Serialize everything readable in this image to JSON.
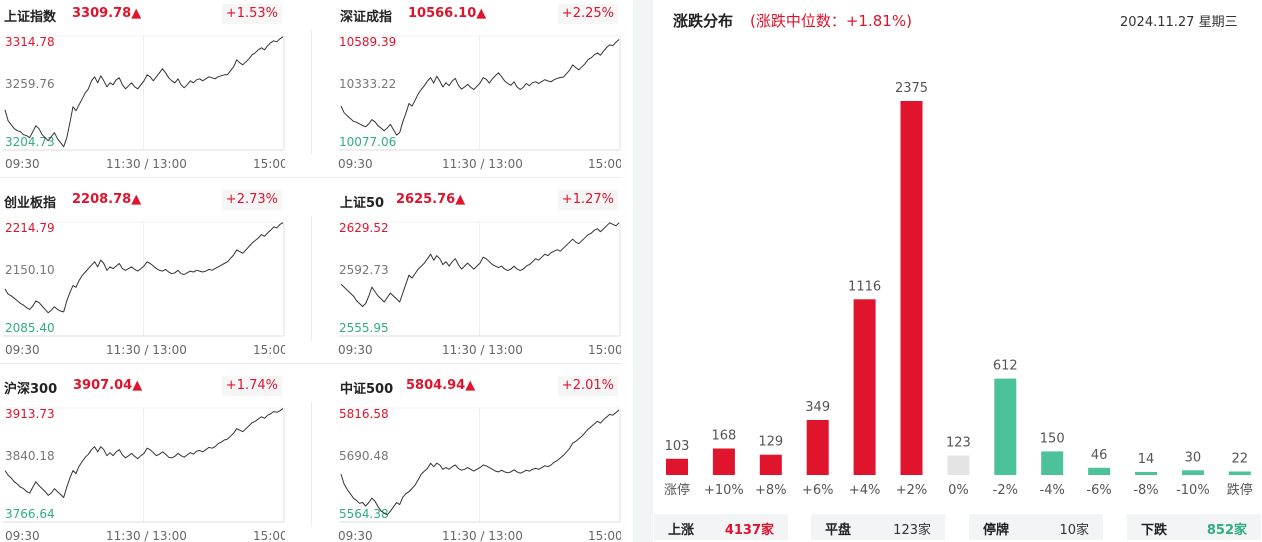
{
  "indices": [
    {
      "name": "上证指数",
      "price": "3309.78▲",
      "pct": "+1.53%",
      "high": "3314.78",
      "mid": "3259.76",
      "low": "3204.73",
      "times": [
        "09:30",
        "11:30 / 13:00",
        "15:00"
      ],
      "series": [
        3241,
        3230,
        3226,
        3222,
        3220,
        3219,
        3216,
        3215,
        3213,
        3219,
        3225,
        3222,
        3216,
        3213,
        3210,
        3214,
        3218,
        3212,
        3208,
        3204,
        3213,
        3228,
        3244,
        3240,
        3246,
        3252,
        3258,
        3262,
        3270,
        3274,
        3268,
        3275,
        3270,
        3264,
        3268,
        3266,
        3271,
        3273,
        3266,
        3262,
        3265,
        3268,
        3264,
        3262,
        3266,
        3270,
        3276,
        3274,
        3270,
        3274,
        3278,
        3282,
        3278,
        3273,
        3270,
        3268,
        3272,
        3266,
        3263,
        3266,
        3270,
        3268,
        3271,
        3272,
        3270,
        3272,
        3274,
        3273,
        3272,
        3274,
        3275,
        3276,
        3276,
        3280,
        3284,
        3291,
        3288,
        3286,
        3289,
        3292,
        3296,
        3298,
        3301,
        3303,
        3301,
        3305,
        3308,
        3310,
        3309,
        3312,
        3314
      ]
    },
    {
      "name": "深证成指",
      "price": "10566.10▲",
      "pct": "+2.25%",
      "high": "10589.39",
      "mid": "10333.22",
      "low": "10077.06",
      "times": [
        "09:30",
        "11:30 / 13:00",
        "15:00"
      ],
      "series": [
        10263,
        10232,
        10218,
        10205,
        10192,
        10188,
        10180,
        10172,
        10167,
        10180,
        10200,
        10190,
        10171,
        10160,
        10148,
        10162,
        10178,
        10153,
        10128,
        10140,
        10190,
        10230,
        10275,
        10263,
        10290,
        10320,
        10340,
        10358,
        10380,
        10395,
        10370,
        10402,
        10380,
        10352,
        10372,
        10358,
        10380,
        10392,
        10360,
        10342,
        10352,
        10364,
        10350,
        10340,
        10355,
        10370,
        10395,
        10388,
        10370,
        10390,
        10405,
        10418,
        10400,
        10380,
        10368,
        10360,
        10376,
        10352,
        10340,
        10350,
        10368,
        10358,
        10372,
        10376,
        10368,
        10378,
        10386,
        10380,
        10376,
        10386,
        10392,
        10396,
        10398,
        10414,
        10430,
        10455,
        10442,
        10432,
        10446,
        10460,
        10480,
        10488,
        10502,
        10510,
        10500,
        10520,
        10536,
        10548,
        10544,
        10560,
        10573
      ]
    },
    {
      "name": "创业板指",
      "price": "2208.78▲",
      "pct": "+2.73%",
      "high": "2214.79",
      "mid": "2150.10",
      "low": "2085.40",
      "times": [
        "09:30",
        "11:30 / 13:00",
        "15:00"
      ],
      "series": [
        2136,
        2130,
        2128,
        2125,
        2122,
        2119,
        2117,
        2114,
        2112,
        2116,
        2122,
        2120,
        2116,
        2112,
        2108,
        2111,
        2115,
        2112,
        2110,
        2109,
        2122,
        2132,
        2140,
        2138,
        2146,
        2152,
        2156,
        2160,
        2164,
        2168,
        2162,
        2170,
        2166,
        2158,
        2162,
        2160,
        2163,
        2166,
        2160,
        2158,
        2160,
        2162,
        2159,
        2157,
        2160,
        2163,
        2168,
        2166,
        2163,
        2160,
        2158,
        2157,
        2159,
        2156,
        2154,
        2155,
        2158,
        2154,
        2153,
        2155,
        2157,
        2156,
        2158,
        2157,
        2156,
        2157,
        2159,
        2158,
        2160,
        2162,
        2164,
        2166,
        2168,
        2172,
        2176,
        2182,
        2180,
        2178,
        2182,
        2186,
        2190,
        2193,
        2196,
        2200,
        2198,
        2202,
        2205,
        2209,
        2208,
        2212,
        2214
      ]
    },
    {
      "name": "上证50",
      "price": "2625.76▲",
      "pct": "+1.27%",
      "high": "2629.52",
      "mid": "2592.73",
      "low": "2555.95",
      "times": [
        "09:30",
        "11:30 / 13:00",
        "15:00"
      ],
      "series": [
        2588,
        2586,
        2584,
        2582,
        2580,
        2577,
        2575,
        2573,
        2575,
        2580,
        2586,
        2583,
        2580,
        2578,
        2576,
        2579,
        2582,
        2580,
        2578,
        2576,
        2582,
        2588,
        2594,
        2592,
        2595,
        2598,
        2600,
        2602,
        2605,
        2608,
        2604,
        2607,
        2605,
        2601,
        2603,
        2600,
        2603,
        2605,
        2601,
        2598,
        2600,
        2602,
        2600,
        2598,
        2600,
        2602,
        2606,
        2605,
        2603,
        2601,
        2600,
        2599,
        2600,
        2598,
        2597,
        2598,
        2600,
        2598,
        2597,
        2598,
        2600,
        2601,
        2603,
        2605,
        2604,
        2606,
        2608,
        2607,
        2609,
        2610,
        2611,
        2610,
        2612,
        2614,
        2616,
        2618,
        2616,
        2615,
        2617,
        2619,
        2621,
        2622,
        2624,
        2625,
        2623,
        2625,
        2627,
        2629,
        2628,
        2627,
        2629
      ]
    },
    {
      "name": "中证500",
      "price": "5804.94▲",
      "pct": "+2.01%",
      "high": "5816.58",
      "mid": "5690.48",
      "low": "5564.38",
      "times": [
        "09:30",
        "11:30 / 13:00",
        "15:00"
      ],
      "series": [
        5665,
        5642,
        5630,
        5620,
        5610,
        5605,
        5598,
        5600,
        5592,
        5600,
        5610,
        5603,
        5590,
        5580,
        5575,
        5572,
        5580,
        5590,
        5600,
        5595,
        5612,
        5620,
        5625,
        5632,
        5640,
        5652,
        5665,
        5672,
        5678,
        5690,
        5682,
        5690,
        5686,
        5676,
        5680,
        5676,
        5682,
        5686,
        5678,
        5674,
        5676,
        5680,
        5676,
        5672,
        5676,
        5680,
        5686,
        5684,
        5680,
        5676,
        5672,
        5670,
        5674,
        5670,
        5668,
        5670,
        5675,
        5670,
        5667,
        5670,
        5674,
        5672,
        5676,
        5678,
        5676,
        5680,
        5684,
        5682,
        5686,
        5692,
        5696,
        5702,
        5708,
        5716,
        5724,
        5736,
        5740,
        5746,
        5752,
        5760,
        5768,
        5774,
        5780,
        5786,
        5782,
        5790,
        5796,
        5802,
        5800,
        5806,
        5812
      ]
    },
    {
      "name": "沪深300",
      "price": "3907.04▲",
      "pct": "+1.74%",
      "high": "3913.73",
      "mid": "3840.18",
      "low": "3766.64",
      "times": [
        "09:30",
        "11:30 / 13:00",
        "15:00"
      ],
      "series": [
        3830,
        3824,
        3820,
        3815,
        3812,
        3808,
        3806,
        3802,
        3800,
        3808,
        3815,
        3810,
        3806,
        3802,
        3797,
        3800,
        3806,
        3802,
        3798,
        3794,
        3808,
        3820,
        3830,
        3826,
        3836,
        3842,
        3848,
        3852,
        3858,
        3862,
        3855,
        3862,
        3858,
        3850,
        3854,
        3850,
        3855,
        3858,
        3851,
        3847,
        3850,
        3853,
        3849,
        3846,
        3850,
        3853,
        3860,
        3858,
        3854,
        3850,
        3852,
        3855,
        3852,
        3848,
        3847,
        3849,
        3853,
        3850,
        3848,
        3851,
        3854,
        3852,
        3856,
        3857,
        3855,
        3858,
        3861,
        3860,
        3862,
        3866,
        3868,
        3871,
        3872,
        3876,
        3880,
        3886,
        3884,
        3882,
        3886,
        3890,
        3894,
        3896,
        3899,
        3902,
        3900,
        3904,
        3906,
        3909,
        3908,
        3910,
        3913
      ]
    }
  ],
  "distribution": {
    "title": "涨跌分布",
    "median_text": "(涨跌中位数：+1.81%)",
    "date": "2024.11.27 星期三"
  },
  "chart_data": {
    "type": "bar",
    "title": "涨跌分布",
    "categories": [
      "涨停",
      "+10%",
      "+8%",
      "+6%",
      "+4%",
      "+2%",
      "0%",
      "-2%",
      "-4%",
      "-6%",
      "-8%",
      "-10%",
      "跌停"
    ],
    "values": [
      103,
      168,
      129,
      349,
      1116,
      2375,
      123,
      612,
      150,
      46,
      14,
      30,
      22
    ],
    "colors": [
      "#e0142c",
      "#e0142c",
      "#e0142c",
      "#e0142c",
      "#e0142c",
      "#e0142c",
      "#e4e4e4",
      "#4cc29a",
      "#4cc29a",
      "#4cc29a",
      "#4cc29a",
      "#4cc29a",
      "#4cc29a"
    ],
    "ylim": [
      0,
      2375
    ]
  },
  "summary": [
    {
      "label": "上涨",
      "value": "4137家",
      "color": "#e0142c"
    },
    {
      "label": "平盘",
      "value": "123家",
      "color": "#333333"
    },
    {
      "label": "停牌",
      "value": "10家",
      "color": "#333333"
    },
    {
      "label": "下跌",
      "value": "852家",
      "color": "#2fae80"
    }
  ],
  "colors": {
    "up": "#e0142c",
    "down": "#2fae80",
    "flat": "#e4e4e4",
    "line": "#333333"
  }
}
